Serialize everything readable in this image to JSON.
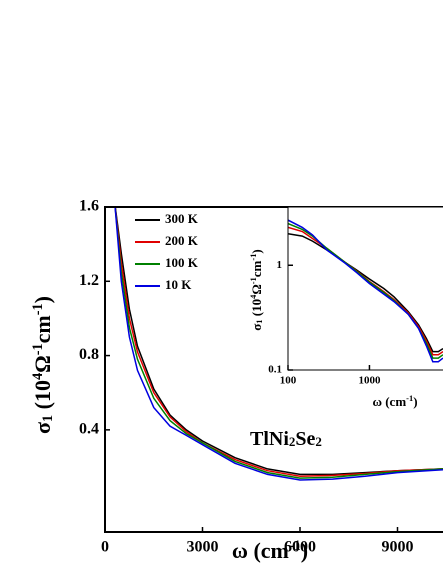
{
  "chart_data": [
    {
      "type": "line",
      "ylabel": [
        {
          "text": "σ"
        },
        {
          "text": "1",
          "shift": "sub"
        },
        {
          "text": " (10"
        },
        {
          "text": "4",
          "shift": "sup"
        },
        {
          "text": "Ω"
        },
        {
          "text": "-1",
          "shift": "sup"
        },
        {
          "text": "cm"
        },
        {
          "text": "-1",
          "shift": "sup"
        },
        {
          "text": ")"
        }
      ],
      "xlabel": [
        {
          "text": "ω (cm"
        },
        {
          "text": "-1",
          "shift": "sup"
        },
        {
          "text": ")"
        }
      ],
      "annotation": [
        {
          "text": "TlNi"
        },
        {
          "text": "2",
          "shift": "sub"
        },
        {
          "text": "Se"
        },
        {
          "text": "2",
          "shift": "sub"
        }
      ],
      "xlim": [
        0,
        10400
      ],
      "xticks": [
        0,
        3000,
        6000,
        9000
      ],
      "ylim": [
        -0.15,
        1.6
      ],
      "yticks": [
        0.4,
        0.8,
        1.2,
        1.6
      ],
      "legend": "upper left",
      "x": [
        300,
        500,
        750,
        1000,
        1500,
        2000,
        2500,
        3000,
        4000,
        5000,
        6000,
        7000,
        8000,
        9000,
        10400
      ],
      "series": [
        {
          "name": "300 K",
          "color": "#000000",
          "values": [
            1.62,
            1.35,
            1.05,
            0.85,
            0.62,
            0.48,
            0.4,
            0.34,
            0.25,
            0.19,
            0.16,
            0.16,
            0.17,
            0.18,
            0.19
          ]
        },
        {
          "name": "200 K",
          "color": "#e00000",
          "values": [
            1.62,
            1.3,
            1.0,
            0.82,
            0.6,
            0.47,
            0.39,
            0.33,
            0.24,
            0.18,
            0.15,
            0.155,
            0.165,
            0.18,
            0.19
          ]
        },
        {
          "name": "100 K",
          "color": "#008000",
          "values": [
            1.62,
            1.25,
            0.95,
            0.78,
            0.57,
            0.45,
            0.38,
            0.33,
            0.23,
            0.17,
            0.14,
            0.145,
            0.16,
            0.175,
            0.19
          ]
        },
        {
          "name": "10 K",
          "color": "#0000e0",
          "values": [
            1.62,
            1.2,
            0.9,
            0.72,
            0.52,
            0.42,
            0.37,
            0.32,
            0.22,
            0.16,
            0.13,
            0.135,
            0.15,
            0.17,
            0.185
          ]
        }
      ]
    },
    {
      "type": "line",
      "log": true,
      "ylabel": [
        {
          "text": "σ"
        },
        {
          "text": "1",
          "shift": "sub"
        },
        {
          "text": " (10"
        },
        {
          "text": "4",
          "shift": "sup"
        },
        {
          "text": "Ω"
        },
        {
          "text": "-1",
          "shift": "sup"
        },
        {
          "text": "cm"
        },
        {
          "text": "-1",
          "shift": "sup"
        },
        {
          "text": ")"
        }
      ],
      "xlabel": [
        {
          "text": "ω (cm"
        },
        {
          "text": "-1",
          "shift": "sup"
        },
        {
          "text": ")"
        }
      ],
      "xlim": [
        100,
        8000
      ],
      "xticks": [
        100,
        1000
      ],
      "ylim": [
        0.1,
        3.6
      ],
      "yticks": [
        0.1,
        1
      ],
      "x": [
        100,
        150,
        200,
        300,
        500,
        700,
        1000,
        1500,
        2000,
        3000,
        4000,
        5000,
        6000,
        7000,
        8000
      ],
      "series": [
        {
          "name": "300 K",
          "color": "#000000",
          "values": [
            2.0,
            1.9,
            1.7,
            1.4,
            1.07,
            0.9,
            0.74,
            0.6,
            0.5,
            0.36,
            0.27,
            0.2,
            0.15,
            0.15,
            0.16
          ]
        },
        {
          "name": "200 K",
          "color": "#e00000",
          "values": [
            2.3,
            2.1,
            1.8,
            1.45,
            1.07,
            0.88,
            0.7,
            0.56,
            0.47,
            0.35,
            0.26,
            0.19,
            0.14,
            0.14,
            0.15
          ]
        },
        {
          "name": "100 K",
          "color": "#008000",
          "values": [
            2.5,
            2.2,
            1.9,
            1.45,
            1.07,
            0.87,
            0.69,
            0.55,
            0.46,
            0.34,
            0.25,
            0.18,
            0.13,
            0.13,
            0.14
          ]
        },
        {
          "name": "10 K",
          "color": "#0000e0",
          "values": [
            2.7,
            2.3,
            1.95,
            1.4,
            1.05,
            0.85,
            0.67,
            0.53,
            0.45,
            0.34,
            0.25,
            0.17,
            0.12,
            0.12,
            0.13
          ]
        }
      ]
    }
  ]
}
